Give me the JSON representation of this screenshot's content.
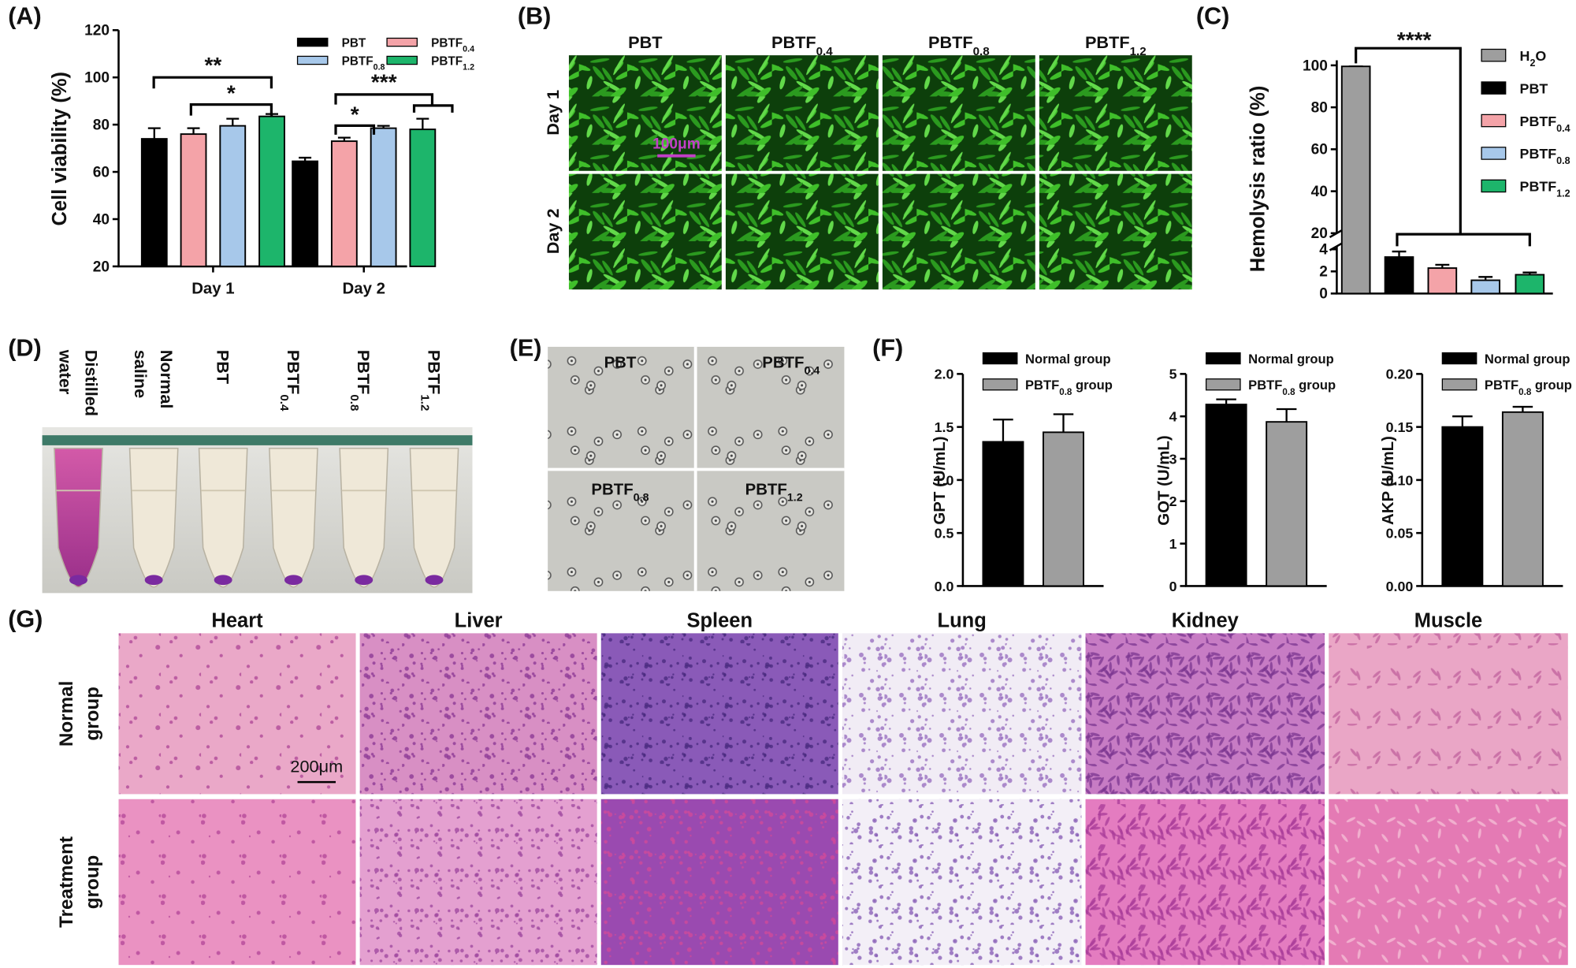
{
  "panel_labels": [
    "(A)",
    "(B)",
    "(C)",
    "(D)",
    "(E)",
    "(F)",
    "(G)"
  ],
  "chart_data": [
    {
      "type": "bar",
      "y_label": "Cell viability (%)",
      "categories": [
        "Day 1",
        "Day 2"
      ],
      "series": [
        {
          "name": "PBT",
          "color": "#000000",
          "values": [
            74,
            64.5
          ],
          "errors": [
            4.5,
            1.5
          ]
        },
        {
          "name": "PBTF0.4",
          "color": "#f4a3a8",
          "values": [
            76,
            73
          ],
          "errors": [
            2.5,
            1.5
          ]
        },
        {
          "name": "PBTF0.8",
          "color": "#a7c8ea",
          "values": [
            79.5,
            78.5
          ],
          "errors": [
            3,
            1
          ]
        },
        {
          "name": "PBTF1.2",
          "color": "#1db56b",
          "values": [
            83.5,
            78
          ],
          "errors": [
            1,
            4.5
          ]
        }
      ],
      "ylim": [
        20,
        120
      ],
      "yticks": [
        20,
        40,
        60,
        80,
        100,
        120
      ],
      "annotations": [
        "**",
        "*",
        "***",
        "*"
      ]
    },
    {
      "type": "bar",
      "y_label": "Hemolysis ratio (%)",
      "categories": [
        "H2O",
        "PBT",
        "PBTF0.4",
        "PBTF0.8",
        "PBTF1.2"
      ],
      "colors": [
        "#9e9e9e",
        "#000000",
        "#f4a3a8",
        "#a7c8ea",
        "#1db56b"
      ],
      "values": [
        99.5,
        3.3,
        2.3,
        1.2,
        1.7
      ],
      "errors": [
        0,
        0.5,
        0.3,
        0.3,
        0.2
      ],
      "ylim": [
        0,
        100
      ],
      "yticks": [
        0,
        2,
        4,
        20,
        40,
        60,
        80,
        100
      ],
      "axis_break": [
        4,
        20
      ],
      "annotations": [
        "****"
      ]
    },
    {
      "type": "bar",
      "y_label": "GPT (U/mL)",
      "categories": [
        "Normal group",
        "PBTF0.8 group"
      ],
      "colors": [
        "#000000",
        "#9e9e9e"
      ],
      "values": [
        1.36,
        1.45
      ],
      "errors": [
        0.21,
        0.17
      ],
      "ylim": [
        0,
        2
      ],
      "yticks": [
        {
          "value": 0,
          "label": "0.0"
        },
        0.5,
        {
          "value": 1,
          "label": "1.0"
        },
        1.5,
        {
          "value": 2,
          "label": "2.0"
        }
      ]
    },
    {
      "type": "bar",
      "y_label": "GOT (U/mL)",
      "categories": [
        "Normal group",
        "PBTF0.8 group"
      ],
      "colors": [
        "#000000",
        "#9e9e9e"
      ],
      "values": [
        4.28,
        3.87
      ],
      "errors": [
        0.12,
        0.3
      ],
      "ylim": [
        0,
        5
      ],
      "yticks": [
        0,
        1,
        2,
        3,
        4,
        5
      ]
    },
    {
      "type": "bar",
      "y_label": "AKP (U/mL)",
      "categories": [
        "Normal group",
        "PBTF0.8 group"
      ],
      "colors": [
        "#000000",
        "#9e9e9e"
      ],
      "values": [
        0.15,
        0.164
      ],
      "errors": [
        0.01,
        0.005
      ],
      "ylim": [
        0,
        0.2
      ],
      "yticks": [
        {
          "value": 0,
          "label": "0.00"
        },
        0.05,
        {
          "value": 0.1,
          "label": "0.10"
        },
        0.15,
        {
          "value": 0.2,
          "label": "0.20"
        }
      ]
    }
  ],
  "panel_b": {
    "columns": [
      "PBT",
      "PBTF0.4",
      "PBTF0.8",
      "PBTF1.2"
    ],
    "rows": [
      "Day 1",
      "Day 2"
    ],
    "scale_bar": "100μm"
  },
  "panel_d": {
    "tubes": [
      [
        "Distilled",
        "water"
      ],
      [
        "Normal",
        "saline"
      ],
      [
        "PBT"
      ],
      [
        "PBTF0.4"
      ],
      [
        "PBTF0.8"
      ],
      [
        "PBTF1.2"
      ]
    ]
  },
  "panel_e": {
    "labels": [
      "PBT",
      "PBTF0.4",
      "PBTF0.8",
      "PBTF1.2"
    ]
  },
  "panel_g": {
    "columns": [
      "Heart",
      "Liver",
      "Spleen",
      "Lung",
      "Kidney",
      "Muscle"
    ],
    "rows": [
      [
        "Normal",
        "group"
      ],
      [
        "Treatment",
        "group"
      ]
    ],
    "scale_bar": "200μm"
  }
}
